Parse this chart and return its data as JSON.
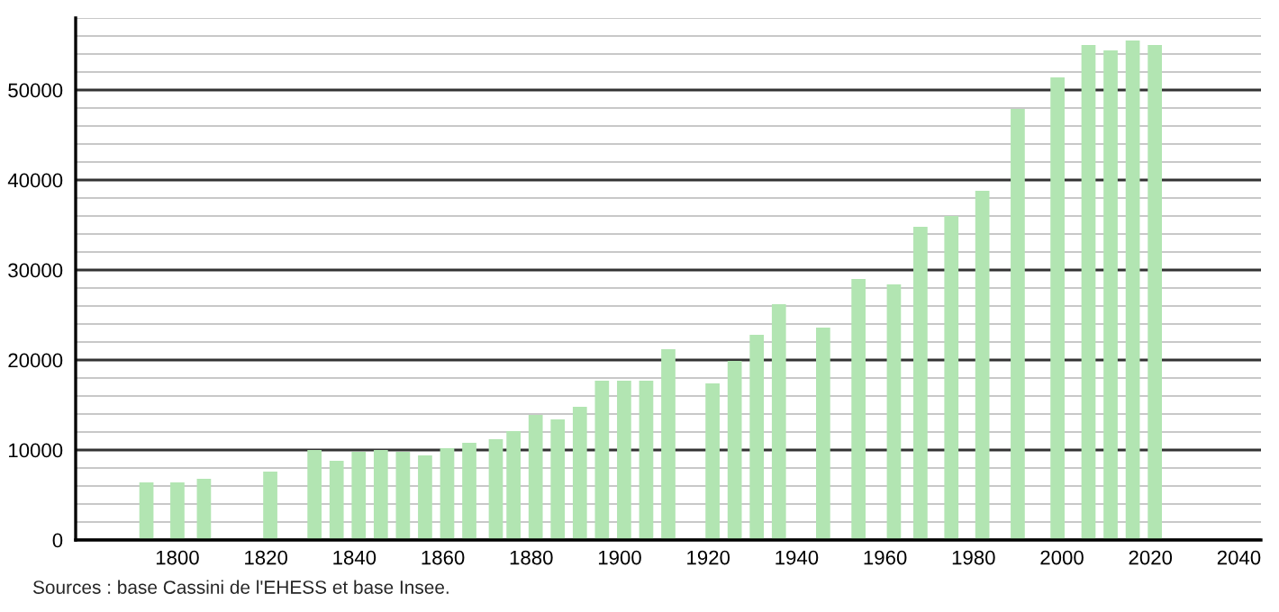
{
  "chart_data": {
    "type": "bar",
    "x": [
      1793,
      1800,
      1806,
      1821,
      1831,
      1836,
      1841,
      1846,
      1851,
      1856,
      1861,
      1866,
      1872,
      1876,
      1881,
      1886,
      1891,
      1896,
      1901,
      1906,
      1911,
      1921,
      1926,
      1931,
      1936,
      1946,
      1954,
      1962,
      1968,
      1975,
      1982,
      1990,
      1999,
      2006,
      2011,
      2016,
      2021
    ],
    "values": [
      6400,
      6400,
      6800,
      7600,
      10000,
      8800,
      9800,
      10000,
      9800,
      9400,
      10200,
      10800,
      11200,
      12100,
      13900,
      13400,
      14800,
      17700,
      17700,
      17700,
      21200,
      17400,
      19900,
      22800,
      26200,
      23600,
      29000,
      28400,
      34800,
      36000,
      38800,
      47900,
      51400,
      55000,
      54400,
      55500,
      55000
    ],
    "color": "#b2e5b2",
    "xlim": [
      1777,
      2045
    ],
    "xticks": [
      1800,
      1820,
      1840,
      1860,
      1880,
      1900,
      1920,
      1940,
      1960,
      1980,
      2000,
      2020,
      2040
    ],
    "ylim": [
      0,
      58000
    ],
    "yticks": [
      0,
      {
        "value": 2000,
        "label": null
      },
      {
        "value": 4000,
        "label": null
      },
      {
        "value": 6000,
        "label": null
      },
      {
        "value": 8000,
        "label": null
      },
      10000,
      {
        "value": 12000,
        "label": null
      },
      {
        "value": 14000,
        "label": null
      },
      {
        "value": 16000,
        "label": null
      },
      {
        "value": 18000,
        "label": null
      },
      20000,
      {
        "value": 22000,
        "label": null
      },
      {
        "value": 24000,
        "label": null
      },
      {
        "value": 26000,
        "label": null
      },
      {
        "value": 28000,
        "label": null
      },
      30000,
      {
        "value": 32000,
        "label": null
      },
      {
        "value": 34000,
        "label": null
      },
      {
        "value": 36000,
        "label": null
      },
      {
        "value": 38000,
        "label": null
      },
      40000,
      {
        "value": 42000,
        "label": null
      },
      {
        "value": 44000,
        "label": null
      },
      {
        "value": 46000,
        "label": null
      },
      {
        "value": 48000,
        "label": null
      },
      50000,
      {
        "value": 52000,
        "label": null
      },
      {
        "value": 54000,
        "label": null
      },
      {
        "value": 56000,
        "label": null
      },
      {
        "value": 58000,
        "label": null
      }
    ],
    "grid": "y",
    "annotations": [
      "Sources : base Cassini de l'EHESS et base Insee."
    ]
  }
}
